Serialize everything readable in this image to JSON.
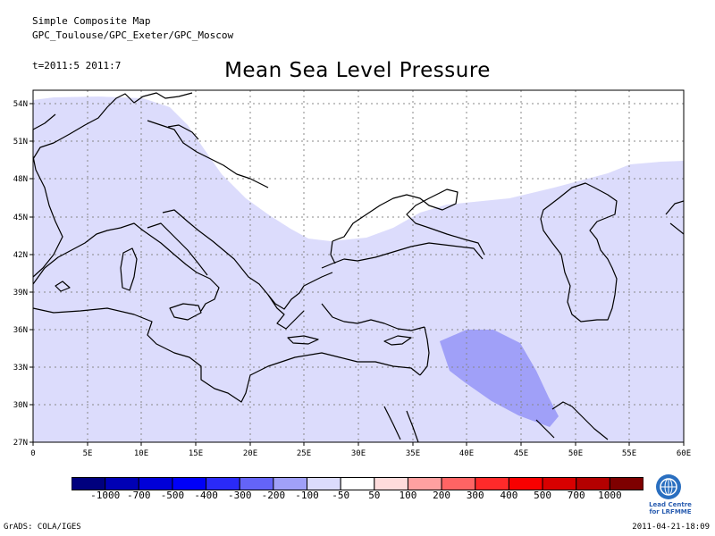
{
  "header": {
    "line1": "Simple Composite Map",
    "line2": "GPC_Toulouse/GPC_Exeter/GPC_Moscow",
    "time": "t=2011:5 2011:7"
  },
  "title": "Mean Sea Level Pressure",
  "map": {
    "lat_labels": [
      "54N",
      "51N",
      "48N",
      "45N",
      "42N",
      "39N",
      "36N",
      "33N",
      "30N",
      "27N"
    ],
    "lon_labels": [
      "0",
      "5E",
      "10E",
      "15E",
      "20E",
      "25E",
      "30E",
      "35E",
      "40E",
      "45E",
      "50E",
      "55E",
      "60E"
    ],
    "anomaly_colors": {
      "light_band": "#dcdcfc",
      "mid_patch": "#a0a0f8"
    }
  },
  "colorbar": {
    "colors": [
      "#00007e",
      "#0000b4",
      "#0000d8",
      "#0000f8",
      "#2a2af8",
      "#6464f8",
      "#a0a0f8",
      "#dcdcfc",
      "#ffffff",
      "#ffdcdc",
      "#ffa0a0",
      "#ff6464",
      "#ff2a2a",
      "#f80000",
      "#d80000",
      "#b40000",
      "#7e0000"
    ],
    "labels": [
      "-1000",
      "-700",
      "-500",
      "-400",
      "-300",
      "-200",
      "-100",
      "-50",
      "50",
      "100",
      "200",
      "300",
      "400",
      "500",
      "700",
      "1000"
    ]
  },
  "footer": {
    "left": "GrADS: COLA/IGES",
    "right": "2011-04-21-18:09",
    "logo_text_1": "Lead Centre",
    "logo_text_2": "for LRFMME"
  }
}
